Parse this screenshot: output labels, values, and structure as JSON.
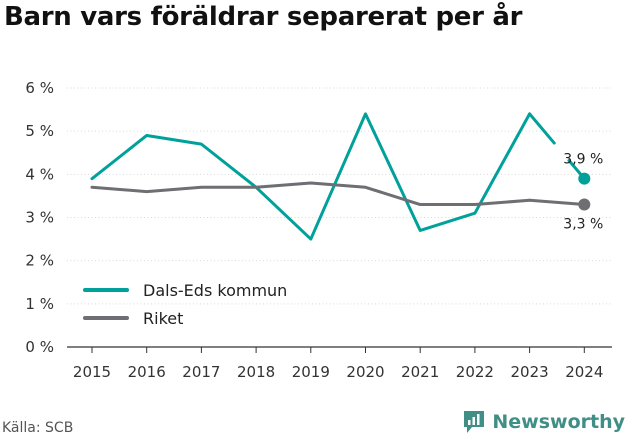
{
  "title": "Barn vars föräldrar separerat per år",
  "source": "Källa: SCB",
  "brand": {
    "name": "Newsworthy",
    "icon": "newsworthy-logo-icon",
    "color": "#3f8f86"
  },
  "chart_data": {
    "type": "line",
    "title": "Barn vars föräldrar separerat per år",
    "x": [
      "2015",
      "2016",
      "2017",
      "2018",
      "2019",
      "2020",
      "2021",
      "2022",
      "2023",
      "2024"
    ],
    "ylim": [
      0,
      6
    ],
    "y_ticks": [
      "0 %",
      "1 %",
      "2 %",
      "3 %",
      "4 %",
      "5 %",
      "6 %"
    ],
    "y_unit": "%",
    "grid": true,
    "legend_position": "bottom-left",
    "series": [
      {
        "name": "Dals-Eds kommun",
        "color": "#00a19a",
        "values": [
          3.9,
          4.9,
          4.7,
          3.7,
          2.5,
          5.4,
          2.7,
          3.1,
          5.4,
          3.9
        ],
        "end_label": "3,9 %"
      },
      {
        "name": "Riket",
        "color": "#6e6e73",
        "values": [
          3.7,
          3.6,
          3.7,
          3.7,
          3.8,
          3.7,
          3.3,
          3.3,
          3.4,
          3.3
        ],
        "end_label": "3,3 %"
      }
    ]
  }
}
